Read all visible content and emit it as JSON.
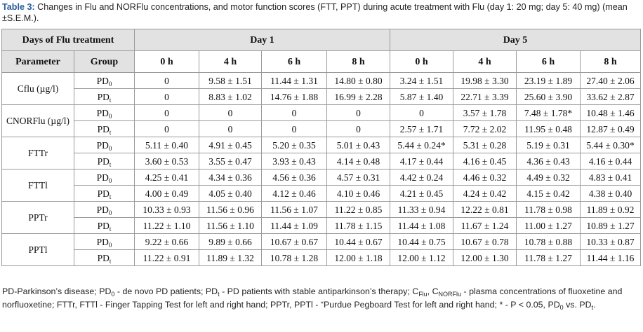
{
  "caption": {
    "label": "Table 3:",
    "text": " Changes in Flu and NORFlu concentrations, and motor function scores (FTT, PPT) during acute treatment with Flu (day 1: 20 mg; day 5: 40 mg) (mean ±S.E.M.)."
  },
  "header": {
    "days_label": "Days of Flu treatment",
    "day1": "Day 1",
    "day5": "Day 5",
    "parameter": "Parameter",
    "group": "Group",
    "times": [
      "0 h",
      "4 h",
      "6 h",
      "8 h",
      "0 h",
      "4 h",
      "6 h",
      "8 h"
    ]
  },
  "groups": {
    "pd": "PD",
    "sub0": "0",
    "subt": "t"
  },
  "rows": [
    {
      "parameter": "Cflu (µg/l)",
      "group_sub": "0",
      "values": [
        "0",
        "9.58 ± 1.51",
        "11.44 ± 1.31",
        "14.80 ± 0.80",
        "3.24 ± 1.51",
        "19.98 ± 3.30",
        "23.19 ± 1.89",
        "27.40 ± 2.06"
      ]
    },
    {
      "parameter": "",
      "group_sub": "t",
      "values": [
        "0",
        "8.83 ± 1.02",
        "14.76 ± 1.88",
        "16.99 ± 2.28",
        "5.87 ± 1.40",
        "22.71 ± 3.39",
        "25.60 ± 3.90",
        "33.62 ± 2.87"
      ]
    },
    {
      "parameter": "CNORFlu (µg/l)",
      "group_sub": "0",
      "values": [
        "0",
        "0",
        "0",
        "0",
        "0",
        "3.57 ± 1.78",
        "7.48 ± 1.78*",
        "10.48 ± 1.46"
      ]
    },
    {
      "parameter": "",
      "group_sub": "t",
      "values": [
        "0",
        "0",
        "0",
        "0",
        "2.57 ± 1.71",
        "7.72 ± 2.02",
        "11.95 ± 0.48",
        "12.87 ± 0.49"
      ]
    },
    {
      "parameter": "FTTr",
      "group_sub": "0",
      "values": [
        "5.11 ± 0.40",
        "4.91 ± 0.45",
        "5.20 ± 0.35",
        "5.01 ± 0.43",
        "5.44 ± 0.24*",
        "5.31 ± 0.28",
        "5.19 ± 0.31",
        "5.44 ± 0.30*"
      ]
    },
    {
      "parameter": "",
      "group_sub": "t",
      "values": [
        "3.60 ± 0.53",
        "3.55 ± 0.47",
        "3.93 ± 0.43",
        "4.14 ± 0.48",
        "4.17 ± 0.44",
        "4.16 ± 0.45",
        "4.36 ± 0.43",
        "4.16 ± 0.44"
      ]
    },
    {
      "parameter": "FTTl",
      "group_sub": "0",
      "values": [
        "4.25 ± 0.41",
        "4.34 ± 0.36",
        "4.56 ± 0.36",
        "4.57 ± 0.31",
        "4.42 ± 0.24",
        "4.46 ± 0.32",
        "4.49 ± 0.32",
        "4.83 ± 0.41"
      ]
    },
    {
      "parameter": "",
      "group_sub": "t",
      "values": [
        "4.00 ± 0.49",
        "4.05 ± 0.40",
        "4.12 ± 0.46",
        "4.10 ± 0.46",
        "4.21 ± 0.45",
        "4.24 ± 0.42",
        "4.15 ± 0.42",
        "4.38 ± 0.40"
      ]
    },
    {
      "parameter": "PPTr",
      "group_sub": "0",
      "values": [
        "10.33 ± 0.93",
        "11.56 ± 0.96",
        "11.56 ± 1.07",
        "11.22 ± 0.85",
        "11.33 ± 0.94",
        "12.22 ± 0.81",
        "11.78 ± 0.98",
        "11.89 ± 0.92"
      ]
    },
    {
      "parameter": "",
      "group_sub": "t",
      "values": [
        "11.22 ± 1.10",
        "11.56 ± 1.10",
        "11.44 ± 1.09",
        "11.78 ± 1.15",
        "11.44 ± 1.08",
        "11.67 ± 1.24",
        "11.00 ± 1.27",
        "10.89 ± 1.27"
      ]
    },
    {
      "parameter": "PPTl",
      "group_sub": "0",
      "values": [
        "9.22 ± 0.66",
        "9.89 ± 0.66",
        "10.67 ± 0.67",
        "10.44 ± 0.67",
        "10.44 ± 0.75",
        "10.67 ± 0.78",
        "10.78 ± 0.88",
        "10.33 ± 0.87"
      ]
    },
    {
      "parameter": "",
      "group_sub": "t",
      "values": [
        "11.22 ± 0.91",
        "11.89 ± 1.32",
        "10.78 ± 1.28",
        "12.00 ± 1.18",
        "12.00 ± 1.12",
        "12.00 ± 1.30",
        "11.78 ± 1.27",
        "11.44 ± 1.16"
      ]
    }
  ],
  "footnote": {
    "p1": "PD-Parkinson’s disease; PD",
    "p2": " - de novo PD patients; PD",
    "p3": " - PD patients with stable antiparkinson’s therapy; C",
    "flu_sub": "Flu",
    "p4": ", C",
    "norflu_sub": "NORFlu",
    "p5": " - plasma concentrations of fluoxetine and norfluoxetine; FTTr, FTTl - Finger Tapping Test for left and right hand; PPTr, PPTl - “Purdue Pegboard Test for left and right hand; * - P < 0.05, PD",
    "p6": " vs. PD",
    "p7": "."
  }
}
